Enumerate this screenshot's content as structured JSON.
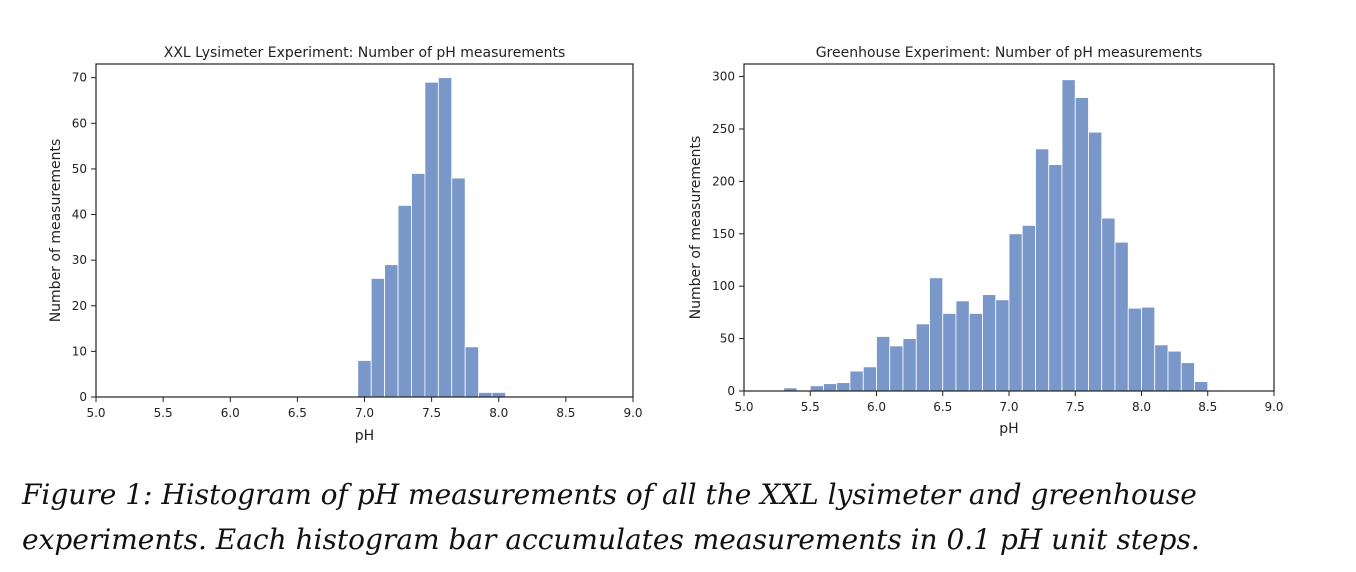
{
  "chart_data": [
    {
      "type": "bar",
      "title": "XXL Lysimeter Experiment: Number of pH measurements",
      "xlabel": "pH",
      "ylabel": "Number of measurements",
      "xlim": [
        5.0,
        9.0
      ],
      "ylim": [
        0,
        73
      ],
      "xticks": [
        "5.0",
        "5.5",
        "6.0",
        "6.5",
        "7.0",
        "7.5",
        "8.0",
        "8.5",
        "9.0"
      ],
      "yticks": [
        "0",
        "10",
        "20",
        "30",
        "40",
        "50",
        "60",
        "70"
      ],
      "bin_width": 0.1,
      "bins": [
        {
          "x0": 6.95,
          "value": 8
        },
        {
          "x0": 7.05,
          "value": 26
        },
        {
          "x0": 7.15,
          "value": 29
        },
        {
          "x0": 7.25,
          "value": 42
        },
        {
          "x0": 7.35,
          "value": 49
        },
        {
          "x0": 7.45,
          "value": 69
        },
        {
          "x0": 7.55,
          "value": 70
        },
        {
          "x0": 7.65,
          "value": 48
        },
        {
          "x0": 7.75,
          "value": 11
        },
        {
          "x0": 7.85,
          "value": 1
        },
        {
          "x0": 7.95,
          "value": 1
        }
      ],
      "grid": false,
      "bar_color": "#7a97c9"
    },
    {
      "type": "bar",
      "title": "Greenhouse Experiment: Number of pH measurements",
      "xlabel": "pH",
      "ylabel": "Number of measurements",
      "xlim": [
        5.0,
        9.0
      ],
      "ylim": [
        0,
        312
      ],
      "xticks": [
        "5.0",
        "5.5",
        "6.0",
        "6.5",
        "7.0",
        "7.5",
        "8.0",
        "8.5",
        "9.0"
      ],
      "yticks": [
        "0",
        "50",
        "100",
        "150",
        "200",
        "250",
        "300"
      ],
      "bin_width": 0.1,
      "bins": [
        {
          "x0": 5.3,
          "value": 3
        },
        {
          "x0": 5.5,
          "value": 5
        },
        {
          "x0": 5.6,
          "value": 7
        },
        {
          "x0": 5.7,
          "value": 8
        },
        {
          "x0": 5.8,
          "value": 19
        },
        {
          "x0": 5.9,
          "value": 23
        },
        {
          "x0": 6.0,
          "value": 52
        },
        {
          "x0": 6.1,
          "value": 43
        },
        {
          "x0": 6.2,
          "value": 50
        },
        {
          "x0": 6.3,
          "value": 64
        },
        {
          "x0": 6.4,
          "value": 108
        },
        {
          "x0": 6.5,
          "value": 74
        },
        {
          "x0": 6.6,
          "value": 86
        },
        {
          "x0": 6.7,
          "value": 74
        },
        {
          "x0": 6.8,
          "value": 92
        },
        {
          "x0": 6.9,
          "value": 87
        },
        {
          "x0": 7.0,
          "value": 150
        },
        {
          "x0": 7.1,
          "value": 158
        },
        {
          "x0": 7.2,
          "value": 231
        },
        {
          "x0": 7.3,
          "value": 216
        },
        {
          "x0": 7.4,
          "value": 297
        },
        {
          "x0": 7.5,
          "value": 280
        },
        {
          "x0": 7.6,
          "value": 247
        },
        {
          "x0": 7.7,
          "value": 165
        },
        {
          "x0": 7.8,
          "value": 142
        },
        {
          "x0": 7.9,
          "value": 79
        },
        {
          "x0": 8.0,
          "value": 80
        },
        {
          "x0": 8.1,
          "value": 44
        },
        {
          "x0": 8.2,
          "value": 38
        },
        {
          "x0": 8.3,
          "value": 27
        },
        {
          "x0": 8.4,
          "value": 9
        }
      ],
      "grid": false,
      "bar_color": "#7a97c9"
    }
  ],
  "caption": "Figure 1: Histogram of pH measurements of all the XXL lysimeter and greenhouse experiments. Each histogram bar accumulates measurements in 0.1 pH unit steps."
}
